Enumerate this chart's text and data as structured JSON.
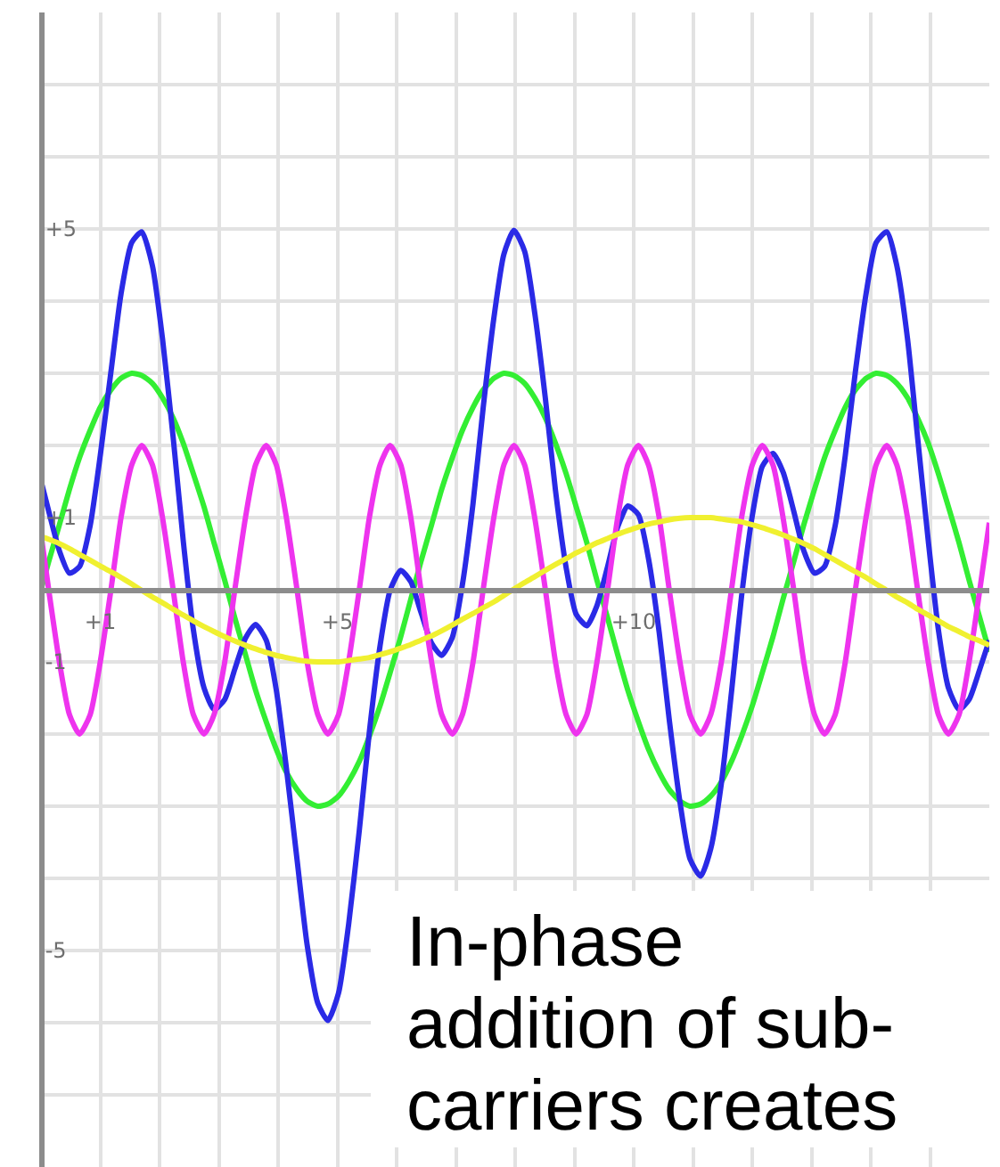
{
  "chart_data": {
    "type": "line",
    "annotations": [
      "In-phase addition of sub-carriers creates"
    ],
    "x": [
      0,
      0.13,
      0.31,
      0.48,
      0.65,
      0.83,
      1.0,
      1.18,
      1.35,
      1.53,
      1.7,
      1.88,
      2.05,
      2.23,
      2.4,
      2.57,
      2.75,
      2.92,
      3.1,
      3.27,
      3.45,
      3.62,
      3.8,
      3.97,
      4.14,
      4.32,
      4.49,
      4.67,
      4.84,
      5.02,
      5.19,
      5.37,
      5.54,
      5.72,
      5.89,
      6.07,
      6.24,
      6.41,
      6.59,
      6.76,
      6.94,
      7.11,
      7.29,
      7.46,
      7.64,
      7.81,
      7.98,
      8.16,
      8.33,
      8.51,
      8.68,
      8.86,
      9.03,
      9.21,
      9.38,
      9.56,
      9.73,
      9.9,
      10.08,
      10.25,
      10.43,
      10.6,
      10.78,
      10.95,
      11.13,
      11.3,
      11.48,
      11.65,
      11.82,
      12.0,
      12.17,
      12.35,
      12.52,
      12.7,
      12.87,
      13.05,
      13.22,
      13.4,
      13.57,
      13.74,
      13.92,
      14.09,
      14.27,
      14.44,
      14.62,
      14.79,
      14.97,
      15.14,
      15.31,
      15.49,
      15.66,
      15.84,
      16
    ],
    "series": [
      {
        "color": "#33ee33",
        "values": [
          0,
          0.39,
          0.9,
          1.39,
          1.83,
          2.21,
          2.53,
          2.77,
          2.93,
          3.0,
          2.97,
          2.86,
          2.66,
          2.38,
          2.03,
          1.61,
          1.15,
          0.65,
          0.13,
          -0.39,
          -0.9,
          -1.39,
          -1.83,
          -2.21,
          -2.53,
          -2.77,
          -2.93,
          -3.0,
          -2.97,
          -2.86,
          -2.66,
          -2.38,
          -2.03,
          -1.61,
          -1.15,
          -0.65,
          -0.13,
          0.39,
          0.9,
          1.39,
          1.83,
          2.21,
          2.53,
          2.77,
          2.93,
          3.0,
          2.97,
          2.86,
          2.66,
          2.38,
          2.03,
          1.61,
          1.15,
          0.65,
          0.13,
          -0.39,
          -0.9,
          -1.39,
          -1.83,
          -2.21,
          -2.53,
          -2.77,
          -2.93,
          -3.0,
          -2.97,
          -2.86,
          -2.66,
          -2.38,
          -2.03,
          -1.61,
          -1.15,
          -0.65,
          -0.13,
          0.39,
          0.9,
          1.39,
          1.83,
          2.21,
          2.53,
          2.77,
          2.93,
          3.0,
          2.97,
          2.86,
          2.66,
          2.38,
          2.03,
          1.61,
          1.15,
          0.65,
          0.13,
          -0.39,
          -0.86
        ]
      },
      {
        "color": "#2a2ae6",
        "values": [
          1.51,
          1.09,
          0.54,
          0.23,
          0.32,
          0.89,
          1.86,
          3.02,
          4.1,
          4.81,
          4.96,
          4.49,
          3.48,
          2.11,
          0.68,
          -0.55,
          -1.36,
          -1.66,
          -1.52,
          -1.1,
          -0.67,
          -0.48,
          -0.7,
          -1.39,
          -2.47,
          -3.74,
          -4.92,
          -5.73,
          -5.97,
          -5.59,
          -4.64,
          -3.34,
          -1.97,
          -0.78,
          -0.01,
          0.27,
          0.11,
          -0.31,
          -0.74,
          -0.91,
          -0.66,
          0.07,
          1.2,
          2.52,
          3.76,
          4.65,
          4.98,
          4.69,
          3.84,
          2.65,
          1.38,
          0.31,
          -0.34,
          -0.5,
          -0.22,
          0.32,
          0.87,
          1.16,
          1.04,
          0.43,
          -0.59,
          -1.8,
          -2.94,
          -3.73,
          -3.97,
          -3.59,
          -2.68,
          -1.42,
          -0.09,
          1.02,
          1.71,
          1.89,
          1.63,
          1.09,
          0.54,
          0.23,
          0.32,
          0.89,
          1.86,
          3.02,
          4.1,
          4.81,
          4.96,
          4.49,
          3.48,
          2.11,
          0.68,
          -0.55,
          -1.36,
          -1.66,
          -1.52,
          -1.1,
          -0.7
        ]
      },
      {
        "color": "#ee33ee",
        "values": [
          0.77,
          0,
          -1,
          -1.73,
          -2,
          -1.73,
          -1,
          0,
          1,
          1.73,
          2,
          1.73,
          1,
          0,
          -1,
          -1.73,
          -2,
          -1.73,
          -1,
          0,
          1,
          1.73,
          2,
          1.73,
          1,
          0,
          -1,
          -1.73,
          -2,
          -1.73,
          -1,
          0,
          1,
          1.73,
          2,
          1.73,
          1,
          0,
          -1,
          -1.73,
          -2,
          -1.73,
          -1,
          0,
          1,
          1.73,
          2,
          1.73,
          1,
          0,
          -1,
          -1.73,
          -2,
          -1.73,
          -1,
          0,
          1,
          1.73,
          2,
          1.73,
          1,
          0,
          -1,
          -1.73,
          -2,
          -1.73,
          -1,
          0,
          1,
          1.73,
          2,
          1.73,
          1,
          0,
          -1,
          -1.73,
          -2,
          -1.73,
          -1,
          0,
          1,
          1.73,
          2,
          1.73,
          1,
          0,
          -1,
          -1.73,
          -2,
          -1.73,
          -1,
          0,
          0.93
        ]
      },
      {
        "color": "#f0f030",
        "values": [
          0.74,
          0.7,
          0.64,
          0.57,
          0.49,
          0.41,
          0.33,
          0.25,
          0.17,
          0.08,
          -0.01,
          -0.1,
          -0.18,
          -0.27,
          -0.35,
          -0.43,
          -0.51,
          -0.58,
          -0.65,
          -0.71,
          -0.77,
          -0.82,
          -0.87,
          -0.91,
          -0.94,
          -0.97,
          -0.99,
          -1.0,
          -1.0,
          -1.0,
          -0.98,
          -0.96,
          -0.94,
          -0.9,
          -0.86,
          -0.81,
          -0.76,
          -0.7,
          -0.64,
          -0.57,
          -0.49,
          -0.41,
          -0.33,
          -0.25,
          -0.17,
          -0.08,
          0.01,
          0.1,
          0.18,
          0.27,
          0.35,
          0.43,
          0.51,
          0.58,
          0.65,
          0.71,
          0.77,
          0.82,
          0.87,
          0.91,
          0.94,
          0.97,
          0.99,
          1.0,
          1.0,
          1.0,
          0.98,
          0.96,
          0.94,
          0.9,
          0.86,
          0.81,
          0.76,
          0.7,
          0.64,
          0.57,
          0.49,
          0.41,
          0.33,
          0.25,
          0.17,
          0.08,
          -0.01,
          -0.1,
          -0.18,
          -0.27,
          -0.35,
          -0.43,
          -0.51,
          -0.58,
          -0.65,
          -0.71,
          -0.77
        ]
      }
    ],
    "xlim": [
      0,
      16
    ],
    "ylim": [
      -8,
      8
    ],
    "xticks": [
      {
        "value": 0,
        "label": null
      },
      {
        "value": 1,
        "label": "+1"
      },
      {
        "value": 2,
        "label": null
      },
      {
        "value": 3,
        "label": null
      },
      {
        "value": 4,
        "label": null
      },
      {
        "value": 5,
        "label": "+5"
      },
      {
        "value": 6,
        "label": null
      },
      {
        "value": 7,
        "label": null
      },
      {
        "value": 8,
        "label": null
      },
      {
        "value": 9,
        "label": null
      },
      {
        "value": 10,
        "label": "+10"
      },
      {
        "value": 11,
        "label": null
      },
      {
        "value": 12,
        "label": null
      },
      {
        "value": 13,
        "label": null
      },
      {
        "value": 14,
        "label": null
      },
      {
        "value": 15,
        "label": null
      }
    ],
    "yticks": [
      {
        "value": -8,
        "label": null
      },
      {
        "value": -7,
        "label": null
      },
      {
        "value": -6,
        "label": null
      },
      {
        "value": -5,
        "label": "-5"
      },
      {
        "value": -4,
        "label": null
      },
      {
        "value": -3,
        "label": null
      },
      {
        "value": -2,
        "label": null
      },
      {
        "value": -1,
        "label": "-1"
      },
      {
        "value": 0,
        "label": null
      },
      {
        "value": 1,
        "label": "+1"
      },
      {
        "value": 2,
        "label": null
      },
      {
        "value": 3,
        "label": null
      },
      {
        "value": 4,
        "label": null
      },
      {
        "value": 5,
        "label": "+5"
      },
      {
        "value": 6,
        "label": null
      },
      {
        "value": 7,
        "label": null
      }
    ],
    "grid": true,
    "line_style": "solid"
  }
}
